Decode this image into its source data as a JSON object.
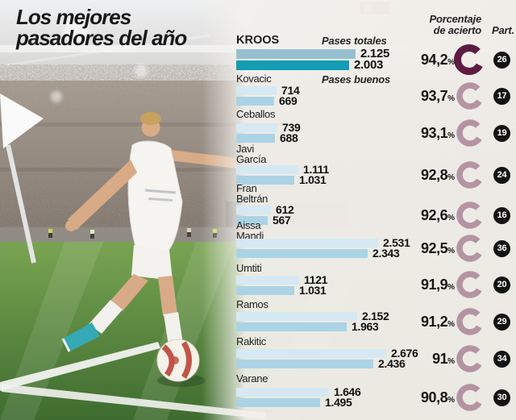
{
  "title": {
    "line1": "Los mejores",
    "line2": "pasadores del año"
  },
  "headers": {
    "pases_totales": "Pases totales",
    "pases_buenos": "Pases buenos",
    "porcentaje_line1": "Porcentaje",
    "porcentaje_line2": "de acierto",
    "part": "Part."
  },
  "colors": {
    "bar_total_highlight": "#96c0cf",
    "bar_good_highlight": "#139cb4",
    "bar_total": "#d6e9f3",
    "bar_good": "#abd3e5",
    "ring_highlight": "#5e1b42",
    "ring": "#b494a3",
    "badge_bg": "#141414",
    "badge_text": "#ffffff"
  },
  "chart_data": {
    "type": "bar",
    "orientation": "horizontal",
    "title": "Los mejores pasadores del año",
    "series": [
      {
        "name": "Pases totales"
      },
      {
        "name": "Pases buenos"
      }
    ],
    "unit": "%",
    "axis_max_hint": 2676,
    "players": [
      {
        "name": "KROOS",
        "pases_totales": 2125,
        "pases_totales_label": "2.125",
        "pases_buenos": 2003,
        "pases_buenos_label": "2.003",
        "porcentaje": "94,2",
        "part": "26",
        "highlight": true
      },
      {
        "name": "Kovacic",
        "pases_totales": 714,
        "pases_totales_label": "714",
        "pases_buenos": 669,
        "pases_buenos_label": "669",
        "porcentaje": "93,7",
        "part": "17",
        "highlight": false
      },
      {
        "name": "Ceballos",
        "pases_totales": 739,
        "pases_totales_label": "739",
        "pases_buenos": 688,
        "pases_buenos_label": "688",
        "porcentaje": "93,1",
        "part": "19",
        "highlight": false
      },
      {
        "name": "Javi García",
        "pases_totales": 1111,
        "pases_totales_label": "1.111",
        "pases_buenos": 1031,
        "pases_buenos_label": "1.031",
        "porcentaje": "92,8",
        "part": "24",
        "highlight": false
      },
      {
        "name": "Fran Beltrán",
        "pases_totales": 612,
        "pases_totales_label": "612",
        "pases_buenos": 567,
        "pases_buenos_label": "567",
        "porcentaje": "92,6",
        "part": "16",
        "highlight": false
      },
      {
        "name": "Aissa Mandi",
        "pases_totales": 2531,
        "pases_totales_label": "2.531",
        "pases_buenos": 2343,
        "pases_buenos_label": "2.343",
        "porcentaje": "92,5",
        "part": "36",
        "highlight": false
      },
      {
        "name": "Umtiti",
        "pases_totales": 1121,
        "pases_totales_label": "1121",
        "pases_buenos": 1031,
        "pases_buenos_label": "1.031",
        "porcentaje": "91,9",
        "part": "20",
        "highlight": false
      },
      {
        "name": "Ramos",
        "pases_totales": 2152,
        "pases_totales_label": "2.152",
        "pases_buenos": 1963,
        "pases_buenos_label": "1.963",
        "porcentaje": "91,2",
        "part": "29",
        "highlight": false
      },
      {
        "name": "Rakitic",
        "pases_totales": 2676,
        "pases_totales_label": "2.676",
        "pases_buenos": 2436,
        "pases_buenos_label": "2.436",
        "porcentaje": "91",
        "part": "34",
        "highlight": false
      },
      {
        "name": "Varane",
        "pases_totales": 1646,
        "pases_totales_label": "1.646",
        "pases_buenos": 1495,
        "pases_buenos_label": "1.495",
        "porcentaje": "90,8",
        "part": "30",
        "highlight": false
      }
    ]
  }
}
